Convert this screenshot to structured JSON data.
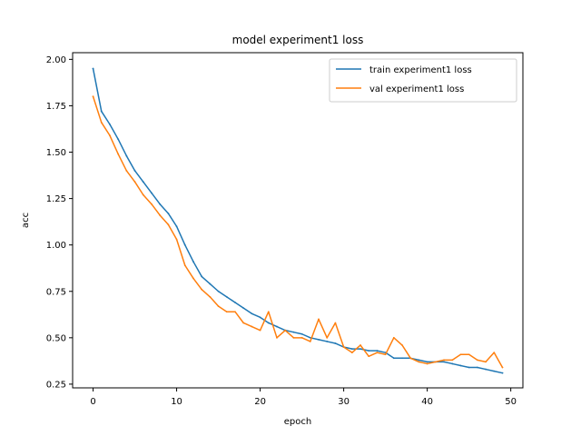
{
  "chart_data": {
    "type": "line",
    "title": "model experiment1 loss",
    "xlabel": "epoch",
    "ylabel": "acc",
    "xlim": [
      -2.45,
      51.45
    ],
    "ylim": [
      0.23,
      2.036
    ],
    "xticks": [
      0,
      10,
      20,
      30,
      40,
      50
    ],
    "yticks": [
      0.25,
      0.5,
      0.75,
      1.0,
      1.25,
      1.5,
      1.75,
      2.0
    ],
    "xtick_labels": [
      "0",
      "10",
      "20",
      "30",
      "40",
      "50"
    ],
    "ytick_labels": [
      "0.25",
      "0.50",
      "0.75",
      "1.00",
      "1.25",
      "1.50",
      "1.75",
      "2.00"
    ],
    "grid": false,
    "legend_position": "top-right",
    "x": [
      0,
      1,
      2,
      3,
      4,
      5,
      6,
      7,
      8,
      9,
      10,
      11,
      12,
      13,
      14,
      15,
      16,
      17,
      18,
      19,
      20,
      21,
      22,
      23,
      24,
      25,
      26,
      27,
      28,
      29,
      30,
      31,
      32,
      33,
      34,
      35,
      36,
      37,
      38,
      39,
      40,
      41,
      42,
      43,
      44,
      45,
      46,
      47,
      48,
      49
    ],
    "series": [
      {
        "name": "train experiment1 loss",
        "color": "#1f77b4",
        "values": [
          1.95,
          1.72,
          1.65,
          1.57,
          1.48,
          1.4,
          1.34,
          1.28,
          1.22,
          1.17,
          1.1,
          1.0,
          0.91,
          0.83,
          0.79,
          0.75,
          0.72,
          0.69,
          0.66,
          0.63,
          0.61,
          0.58,
          0.56,
          0.54,
          0.53,
          0.52,
          0.5,
          0.49,
          0.48,
          0.47,
          0.45,
          0.44,
          0.44,
          0.43,
          0.43,
          0.42,
          0.39,
          0.39,
          0.39,
          0.38,
          0.37,
          0.37,
          0.37,
          0.36,
          0.35,
          0.34,
          0.34,
          0.33,
          0.32,
          0.31
        ]
      },
      {
        "name": "val experiment1 loss",
        "color": "#ff7f0e",
        "values": [
          1.8,
          1.66,
          1.59,
          1.49,
          1.4,
          1.34,
          1.27,
          1.22,
          1.16,
          1.11,
          1.03,
          0.89,
          0.82,
          0.76,
          0.72,
          0.67,
          0.64,
          0.64,
          0.58,
          0.56,
          0.54,
          0.64,
          0.5,
          0.54,
          0.5,
          0.5,
          0.48,
          0.6,
          0.5,
          0.58,
          0.45,
          0.42,
          0.46,
          0.4,
          0.42,
          0.41,
          0.5,
          0.46,
          0.39,
          0.37,
          0.36,
          0.37,
          0.38,
          0.38,
          0.41,
          0.41,
          0.38,
          0.37,
          0.42,
          0.34
        ]
      }
    ]
  }
}
